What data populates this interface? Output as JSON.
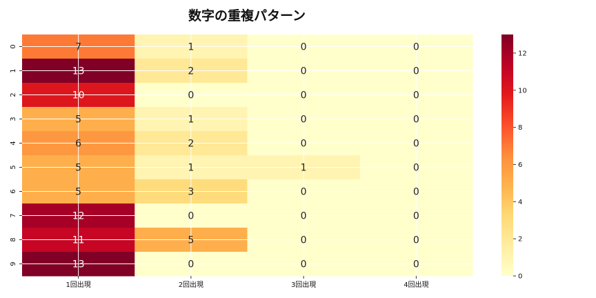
{
  "chart_data": {
    "type": "heatmap",
    "title": "数字の重複パターン",
    "xlabel": "",
    "ylabel": "",
    "x_categories": [
      "1回出現",
      "2回出現",
      "3回出現",
      "4回出現"
    ],
    "y_categories": [
      "0",
      "1",
      "2",
      "3",
      "4",
      "5",
      "6",
      "7",
      "8",
      "9"
    ],
    "values": [
      [
        7,
        1,
        0,
        0
      ],
      [
        13,
        2,
        0,
        0
      ],
      [
        10,
        0,
        0,
        0
      ],
      [
        5,
        1,
        0,
        0
      ],
      [
        6,
        2,
        0,
        0
      ],
      [
        5,
        1,
        1,
        0
      ],
      [
        5,
        3,
        0,
        0
      ],
      [
        12,
        0,
        0,
        0
      ],
      [
        11,
        5,
        0,
        0
      ],
      [
        13,
        0,
        0,
        0
      ]
    ],
    "colormap": "YlOrRd",
    "color_range": [
      0,
      13
    ],
    "colorbar_ticks": [
      "0",
      "2",
      "4",
      "6",
      "8",
      "10",
      "12"
    ],
    "annotate": true,
    "grid": true
  }
}
